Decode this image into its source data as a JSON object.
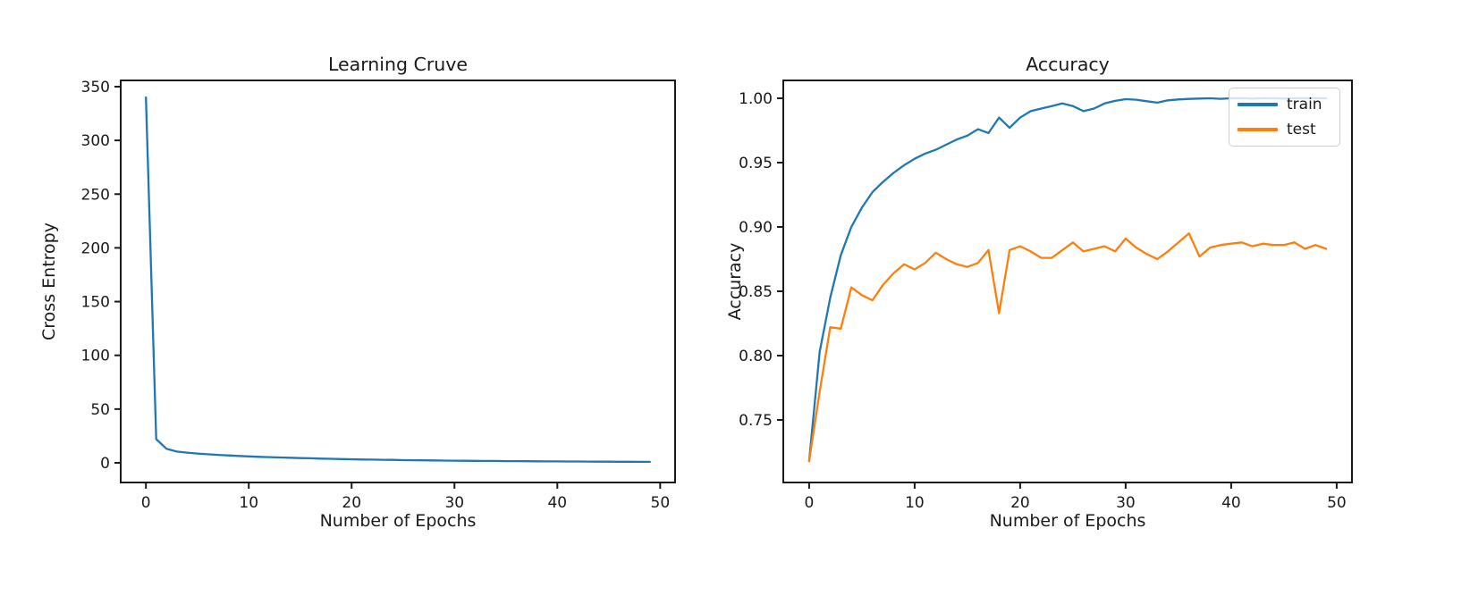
{
  "colors": {
    "train_blue": "#1f77b4",
    "test_orange": "#ff7f0e",
    "axis": "#1a1a1a",
    "legend_border": "#cccccc",
    "background": "#ffffff"
  },
  "chart_data": [
    {
      "type": "line",
      "title": "Learning Cruve",
      "xlabel": "Number of Epochs",
      "ylabel": "Cross Entropy",
      "x_tick_vals": [
        0,
        10,
        20,
        30,
        40,
        50
      ],
      "x_tick_labels": [
        "0",
        "10",
        "20",
        "30",
        "40",
        "50"
      ],
      "y_tick_vals": [
        0,
        50,
        100,
        150,
        200,
        250,
        300,
        350
      ],
      "y_tick_labels": [
        "0",
        "50",
        "100",
        "150",
        "200",
        "250",
        "300",
        "350"
      ],
      "xlim": [
        -2.45,
        51.45
      ],
      "ylim": [
        -18.3,
        355.8
      ],
      "grid": false,
      "legend": null,
      "series": [
        {
          "name": "cross entropy",
          "color": "#1f77b4",
          "x_start": 0,
          "values": [
            340,
            22,
            13,
            10.5,
            9.5,
            8.6,
            8.0,
            7.4,
            6.9,
            6.4,
            6.0,
            5.6,
            5.3,
            5.0,
            4.7,
            4.4,
            4.2,
            3.9,
            3.7,
            3.5,
            3.3,
            3.1,
            3.0,
            2.8,
            2.7,
            2.5,
            2.4,
            2.3,
            2.2,
            2.1,
            2.0,
            1.9,
            1.8,
            1.75,
            1.7,
            1.6,
            1.55,
            1.5,
            1.4,
            1.35,
            1.3,
            1.25,
            1.2,
            1.15,
            1.1,
            1.05,
            1.0,
            0.95,
            0.9,
            0.9
          ]
        }
      ]
    },
    {
      "type": "line",
      "title": "Accuracy",
      "xlabel": "Number of Epochs",
      "ylabel": "Accuracy",
      "x_tick_vals": [
        0,
        10,
        20,
        30,
        40,
        50
      ],
      "x_tick_labels": [
        "0",
        "10",
        "20",
        "30",
        "40",
        "50"
      ],
      "y_tick_vals": [
        0.75,
        0.8,
        0.85,
        0.9,
        0.95,
        1.0
      ],
      "y_tick_labels": [
        "0.75",
        "0.80",
        "0.85",
        "0.90",
        "0.95",
        "1.00"
      ],
      "xlim": [
        -2.45,
        51.45
      ],
      "ylim": [
        0.7014,
        1.0139
      ],
      "grid": false,
      "legend": {
        "position": "upper right",
        "entries": [
          "train",
          "test"
        ]
      },
      "series": [
        {
          "name": "train",
          "color": "#1f77b4",
          "x_start": 0,
          "values": [
            0.718,
            0.803,
            0.845,
            0.878,
            0.9,
            0.915,
            0.927,
            0.935,
            0.942,
            0.948,
            0.953,
            0.957,
            0.96,
            0.964,
            0.968,
            0.971,
            0.976,
            0.973,
            0.985,
            0.977,
            0.985,
            0.99,
            0.992,
            0.994,
            0.996,
            0.994,
            0.99,
            0.992,
            0.996,
            0.998,
            0.9993,
            0.9989,
            0.9977,
            0.9966,
            0.9984,
            0.9991,
            0.9995,
            0.9998,
            1.0,
            0.9996,
            1.0,
            1.0,
            0.9998,
            1.0,
            1.0,
            0.9998,
            1.0,
            1.0,
            1.0,
            1.0
          ]
        },
        {
          "name": "test",
          "color": "#ff7f0e",
          "x_start": 0,
          "values": [
            0.718,
            0.772,
            0.822,
            0.821,
            0.853,
            0.847,
            0.843,
            0.855,
            0.864,
            0.871,
            0.867,
            0.872,
            0.88,
            0.875,
            0.871,
            0.869,
            0.872,
            0.882,
            0.833,
            0.882,
            0.885,
            0.881,
            0.876,
            0.876,
            0.882,
            0.888,
            0.881,
            0.883,
            0.885,
            0.881,
            0.891,
            0.884,
            0.879,
            0.875,
            0.881,
            0.888,
            0.895,
            0.877,
            0.884,
            0.886,
            0.887,
            0.888,
            0.885,
            0.887,
            0.886,
            0.886,
            0.888,
            0.883,
            0.886,
            0.883
          ]
        }
      ]
    }
  ]
}
